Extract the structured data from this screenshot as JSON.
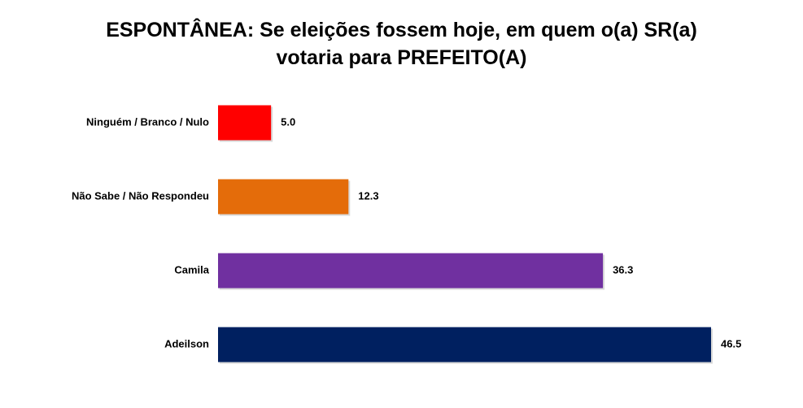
{
  "title": {
    "line1": "ESPONTÂNEA: Se eleições fossem hoje, em quem o(a) SR(a)",
    "line2": "votaria para PREFEITO(A)"
  },
  "chart_data": {
    "type": "bar",
    "orientation": "horizontal",
    "title": "ESPONTÂNEA: Se eleições fossem hoje, em quem o(a) SR(a) votaria para PREFEITO(A)",
    "categories": [
      "Ninguém / Branco / Nulo",
      "Não Sabe / Não Respondeu",
      "Camila",
      "Adeilson"
    ],
    "values": [
      5.0,
      12.3,
      36.3,
      46.5
    ],
    "value_labels": [
      "5.0",
      "12.3",
      "36.3",
      "46.5"
    ],
    "colors": [
      "#ff0000",
      "#e46c0a",
      "#7030a0",
      "#002060"
    ],
    "xlim": [
      0,
      46.5
    ],
    "grid": false,
    "legend": "none",
    "xlabel": "",
    "ylabel": ""
  }
}
